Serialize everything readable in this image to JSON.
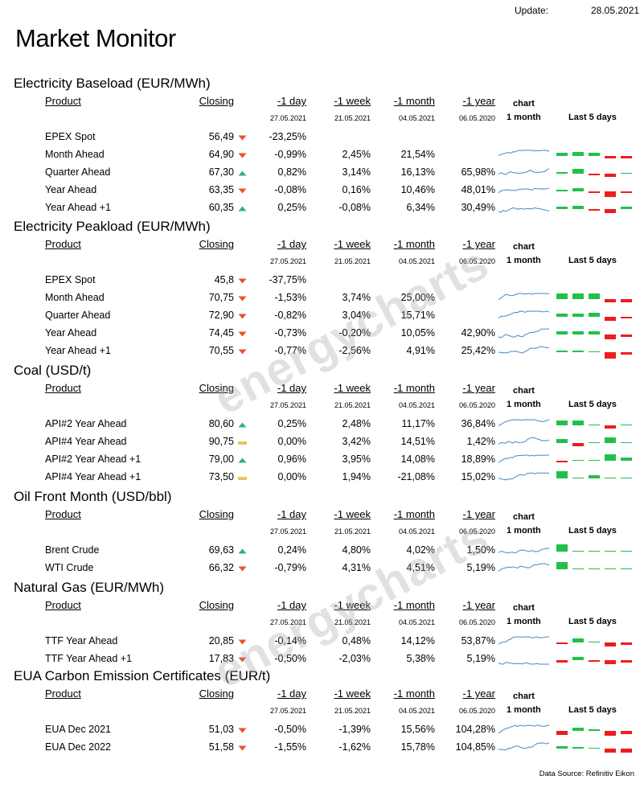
{
  "header": {
    "update_label": "Update:",
    "update_date": "28.05.2021",
    "title": "Market Monitor"
  },
  "columns": {
    "product": "Product",
    "closing": "Closing",
    "d1": "-1 day",
    "w1": "-1 week",
    "m1": "-1 month",
    "y1": "-1 year",
    "chart1": "chart",
    "chart2": "1 month",
    "last5": "Last 5  days"
  },
  "dates": {
    "d1": "27.05.2021",
    "w1": "21.05.2021",
    "m1": "04.05.2021",
    "y1": "06.05.2020"
  },
  "colors": {
    "up": "#2bb673",
    "down": "#e8542b",
    "flat": "#f0c060",
    "spark": "#4a86c8",
    "bar_up": "#22c04a",
    "bar_down": "#ee1c1c"
  },
  "sections": [
    {
      "title": "Electricity Baseload (EUR/MWh)",
      "rows": [
        {
          "product": "EPEX Spot",
          "closing": "56,49",
          "trend": "down",
          "d1": "-23,25%",
          "w1": "",
          "m1": "",
          "y1": "",
          "spark": false,
          "bars": []
        },
        {
          "product": "Month Ahead",
          "closing": "64,90",
          "trend": "down",
          "d1": "-0,99%",
          "w1": "2,45%",
          "m1": "21,54%",
          "y1": "",
          "spark": true,
          "bars": [
            0.4,
            0.6,
            0.4,
            -0.3,
            -0.3
          ]
        },
        {
          "product": "Quarter Ahead",
          "closing": "67,30",
          "trend": "up",
          "d1": "0,82%",
          "w1": "3,14%",
          "m1": "16,13%",
          "y1": "65,98%",
          "spark": true,
          "bars": [
            0.2,
            0.7,
            -0.1,
            -0.4,
            0.1
          ]
        },
        {
          "product": "Year Ahead",
          "closing": "63,35",
          "trend": "down",
          "d1": "-0,08%",
          "w1": "0,16%",
          "m1": "10,46%",
          "y1": "48,01%",
          "spark": true,
          "bars": [
            0.2,
            0.4,
            -0.2,
            -0.8,
            -0.1
          ]
        },
        {
          "product": "Year  Ahead +1",
          "closing": "60,35",
          "trend": "up",
          "d1": "0,25%",
          "w1": "-0,08%",
          "m1": "6,34%",
          "y1": "30,49%",
          "spark": true,
          "bars": [
            0.3,
            0.4,
            -0.1,
            -0.6,
            0.3
          ]
        }
      ]
    },
    {
      "title": "Electricity Peakload (EUR/MWh)",
      "rows": [
        {
          "product": "EPEX Spot",
          "closing": "45,8",
          "trend": "down",
          "d1": "-37,75%",
          "w1": "",
          "m1": "",
          "y1": "",
          "spark": false,
          "bars": []
        },
        {
          "product": "Month Ahead",
          "closing": "70,75",
          "trend": "down",
          "d1": "-1,53%",
          "w1": "3,74%",
          "m1": "25,00%",
          "y1": "",
          "spark": true,
          "bars": [
            0.8,
            0.8,
            0.8,
            -0.4,
            -0.4
          ]
        },
        {
          "product": "Quarter Ahead",
          "closing": "72,90",
          "trend": "down",
          "d1": "-0,82%",
          "w1": "3,04%",
          "m1": "15,71%",
          "y1": "",
          "spark": true,
          "bars": [
            0.4,
            0.4,
            0.6,
            -0.5,
            -0.1
          ]
        },
        {
          "product": "Year Ahead",
          "closing": "74,45",
          "trend": "down",
          "d1": "-0,73%",
          "w1": "-0,20%",
          "m1": "10,05%",
          "y1": "42,90%",
          "spark": true,
          "bars": [
            0.4,
            0.4,
            0.4,
            -0.7,
            -0.3
          ]
        },
        {
          "product": "Year  Ahead +1",
          "closing": "70,55",
          "trend": "down",
          "d1": "-0,77%",
          "w1": "-2,56%",
          "m1": "4,91%",
          "y1": "25,42%",
          "spark": true,
          "bars": [
            0.2,
            0.2,
            0.1,
            -0.9,
            -0.3
          ]
        }
      ]
    },
    {
      "title": "Coal (USD/t)",
      "rows": [
        {
          "product": "API#2 Year Ahead",
          "closing": "80,60",
          "trend": "up",
          "d1": "0,25%",
          "w1": "2,48%",
          "m1": "11,17%",
          "y1": "36,84%",
          "spark": true,
          "bars": [
            0.7,
            0.7,
            0,
            -0.4,
            0.1
          ]
        },
        {
          "product": "API#4 Year Ahead",
          "closing": "90,75",
          "trend": "flat",
          "d1": "0,00%",
          "w1": "3,42%",
          "m1": "14,51%",
          "y1": "1,42%",
          "spark": true,
          "bars": [
            0.6,
            -0.4,
            0,
            0.8,
            0
          ]
        },
        {
          "product": "API#2 Year Ahead +1",
          "closing": "79,00",
          "trend": "up",
          "d1": "0,96%",
          "w1": "3,95%",
          "m1": "14,08%",
          "y1": "18,89%",
          "spark": true,
          "bars": [
            -0.1,
            0,
            0,
            0.9,
            0.4
          ]
        },
        {
          "product": "API#4 Year Ahead +1",
          "closing": "73,50",
          "trend": "flat",
          "d1": "0,00%",
          "w1": "1,94%",
          "m1": "-21,08%",
          "y1": "15,02%",
          "spark": true,
          "bars": [
            1.0,
            0,
            0.5,
            0.1,
            0
          ]
        }
      ]
    },
    {
      "title": "Oil Front Month (USD/bbl)",
      "rows": [
        {
          "product": "Brent Crude",
          "closing": "69,63",
          "trend": "up",
          "d1": "0,24%",
          "w1": "4,80%",
          "m1": "4,02%",
          "y1": "1,50%",
          "spark": true,
          "bars": [
            1.0,
            0.1,
            0.1,
            0.1,
            0.1
          ]
        },
        {
          "product": "WTI Crude",
          "closing": "66,32",
          "trend": "down",
          "d1": "-0,79%",
          "w1": "4,31%",
          "m1": "4,51%",
          "y1": "5,19%",
          "spark": true,
          "bars": [
            1.0,
            0.1,
            0.1,
            0.1,
            0.1
          ]
        }
      ]
    },
    {
      "title": "Natural Gas (EUR/MWh)",
      "rows": [
        {
          "product": "TTF Year Ahead",
          "closing": "20,85",
          "trend": "down",
          "d1": "-0,14%",
          "w1": "0,48%",
          "m1": "14,12%",
          "y1": "53,87%",
          "spark": true,
          "bars": [
            -0.1,
            0.6,
            0.1,
            -0.5,
            -0.3
          ]
        },
        {
          "product": "TTF Year Ahead +1",
          "closing": "17,83",
          "trend": "down",
          "d1": "-0,50%",
          "w1": "-2,03%",
          "m1": "5,38%",
          "y1": "5,19%",
          "spark": true,
          "bars": [
            -0.3,
            0.4,
            -0.1,
            -0.6,
            -0.3
          ]
        }
      ]
    },
    {
      "title": "EUA Carbon Emission Certificates (EUR/t)",
      "rows": [
        {
          "product": "EUA Dec 2021",
          "closing": "51,03",
          "trend": "down",
          "d1": "-0,50%",
          "w1": "-1,39%",
          "m1": "15,56%",
          "y1": "104,28%",
          "spark": true,
          "bars": [
            -0.5,
            0.5,
            0.2,
            -0.7,
            -0.4
          ]
        },
        {
          "product": "EUA Dec 2022",
          "closing": "51,58",
          "trend": "down",
          "d1": "-1,55%",
          "w1": "-1,62%",
          "m1": "15,78%",
          "y1": "104,85%",
          "spark": true,
          "bars": [
            0.3,
            0.2,
            0.1,
            -0.6,
            -0.5
          ]
        }
      ]
    }
  ],
  "watermark": "energycharts",
  "footer": {
    "source": "Data Source: Refinitiv Eikon"
  }
}
